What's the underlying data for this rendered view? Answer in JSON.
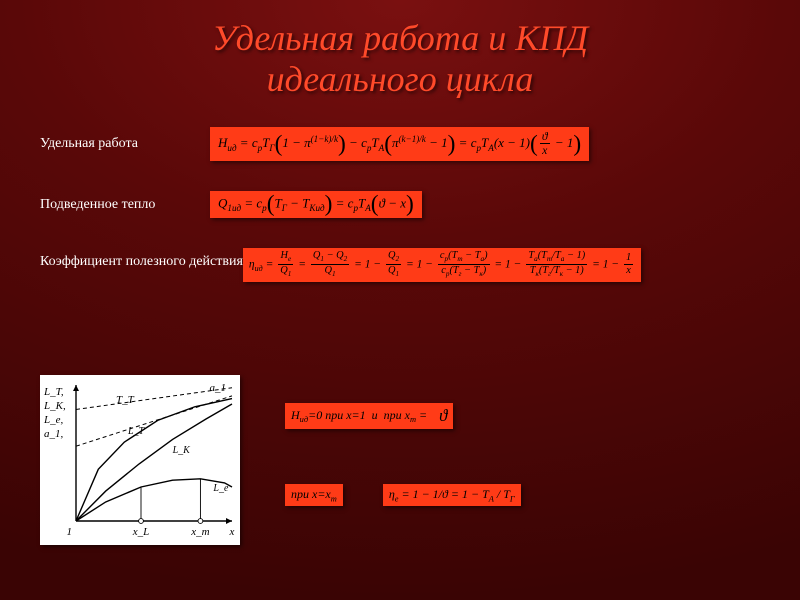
{
  "title_line1": "Удельная работа и КПД",
  "title_line2": "идеального цикла",
  "rows": {
    "work": {
      "label": "Удельная работа"
    },
    "heat": {
      "label": "Подведенное тепло"
    },
    "eff": {
      "label": "Коэффициент полезного действия"
    }
  },
  "formulas": {
    "work": "H_{ид} = c_p T_Г (1 − π^{(1−k)/k}) − c_p T_А (π^{(k−1)/k} − 1) = c_p T_А (x − 1)(ϑ/x − 1)",
    "heat": "Q_{1ид} = c_p (T_Г − T_{Кид}) = c_p T_А (ϑ − x)",
    "eff": "η_{ид} = H_e/Q_1 = (Q_1 − Q_2)/Q_1 = 1 − Q_2/Q_1 = 1 − c_p(T_т − T_а)/c_p(T_г − T_к) = 1 − T_а(T_т/T_а − 1)/T_к(T_г/T_к − 1) = 1 − 1/x",
    "zero": "H_{ид}=0 при x=1  и  при x_m =",
    "theta_tail": "ϑ",
    "at_xm": "при x=x_m",
    "eta_e": "η_e = 1 − 1/ϑ = 1 − T_А / T_Г"
  },
  "graph": {
    "type": "line",
    "background_color": "#ffffff",
    "xlim": [
      1,
      5.2
    ],
    "ylim": [
      0,
      1
    ],
    "y_axis_labels": [
      "L_T,",
      "L_K,",
      "L_e,",
      "a_1,"
    ],
    "x_axis_markers": [
      {
        "x": 2.75,
        "label": "x_L"
      },
      {
        "x": 4.35,
        "label": "x_m"
      },
      {
        "x": 5.2,
        "label": "x"
      }
    ],
    "origin_label": "1",
    "dashed_top_labels": [
      "T_T",
      "a_1"
    ],
    "series": [
      {
        "name": "L_T",
        "color": "#000000",
        "lw": 1.4,
        "points": [
          [
            1,
            0
          ],
          [
            1.6,
            0.38
          ],
          [
            2.3,
            0.58
          ],
          [
            3.2,
            0.74
          ],
          [
            4.2,
            0.84
          ],
          [
            5.2,
            0.9
          ]
        ]
      },
      {
        "name": "L_K",
        "color": "#000000",
        "lw": 1.4,
        "points": [
          [
            1,
            0
          ],
          [
            1.8,
            0.22
          ],
          [
            2.7,
            0.42
          ],
          [
            3.6,
            0.6
          ],
          [
            4.5,
            0.75
          ],
          [
            5.2,
            0.86
          ]
        ]
      },
      {
        "name": "L_e",
        "color": "#000000",
        "lw": 1.4,
        "points": [
          [
            1,
            0
          ],
          [
            1.8,
            0.14
          ],
          [
            2.75,
            0.25
          ],
          [
            3.6,
            0.3
          ],
          [
            4.35,
            0.31
          ],
          [
            5.0,
            0.28
          ],
          [
            5.2,
            0.25
          ]
        ]
      },
      {
        "name": "a_1_dash",
        "color": "#000000",
        "lw": 1.0,
        "dash": "4 3",
        "points": [
          [
            1,
            0.82
          ],
          [
            5.2,
            0.98
          ]
        ]
      },
      {
        "name": "T_T_dash",
        "color": "#000000",
        "lw": 1.0,
        "dash": "4 3",
        "points": [
          [
            1,
            0.55
          ],
          [
            5.2,
            0.92
          ]
        ]
      }
    ],
    "drop_lines": [
      {
        "x": 2.75,
        "y": 0.25
      },
      {
        "x": 4.35,
        "y": 0.31
      }
    ]
  },
  "style": {
    "formula_bg": "#ff3b17",
    "formula_text": "#000000",
    "title_color": "#ff4a2a",
    "body_bg_center": "#7a1010",
    "body_bg_edge": "#3a0404"
  }
}
